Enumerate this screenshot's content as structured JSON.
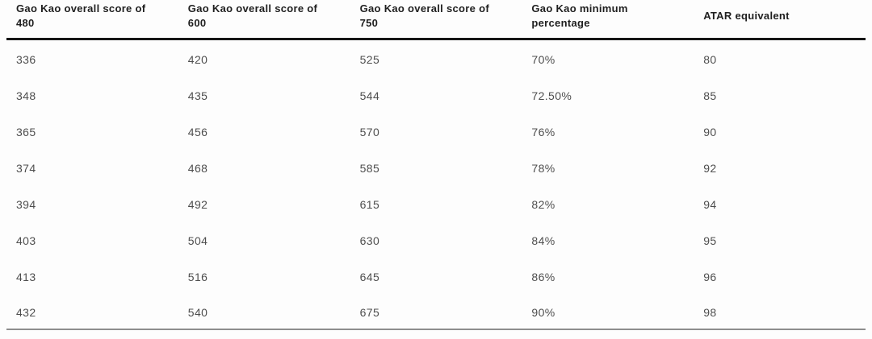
{
  "chart_data": {
    "type": "table",
    "columns": [
      "Gao Kao overall score of 480",
      "Gao Kao overall score of\n600",
      "Gao Kao overall score of 750",
      "Gao Kao minimum\npercentage",
      "ATAR equivalent"
    ],
    "rows": [
      [
        "336",
        "420",
        "525",
        "70%",
        "80"
      ],
      [
        "348",
        "435",
        "544",
        "72.50%",
        "85"
      ],
      [
        "365",
        "456",
        "570",
        "76%",
        "90"
      ],
      [
        "374",
        "468",
        "585",
        "78%",
        "92"
      ],
      [
        "394",
        "492",
        "615",
        "82%",
        "94"
      ],
      [
        "403",
        "504",
        "630",
        "84%",
        "95"
      ],
      [
        "413",
        "516",
        "645",
        "86%",
        "96"
      ],
      [
        "432",
        "540",
        "675",
        "90%",
        "98"
      ]
    ],
    "layout": {
      "grid": "off",
      "header_rule_color": "#161616",
      "bottom_rule_color": "#8e8e8e",
      "header_text_color": "#1f1f1f",
      "body_text_color": "#4e4e4e",
      "background_color": "#fdfdfd"
    }
  }
}
